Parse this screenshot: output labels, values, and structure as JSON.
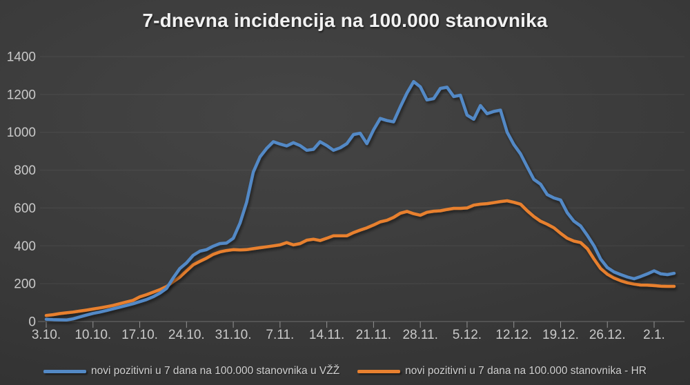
{
  "title": "7-dnevna incidencija na 100.000 stanovnika",
  "colors": {
    "background": "#3a3a3a",
    "title_text": "#f2f2f2",
    "axis_text": "#c9c9c9",
    "gridline": "rgba(255,255,255,0.07)",
    "axis_line": "rgba(255,255,255,0.18)",
    "tick_mark": "#949494",
    "series_vzz": "#5389c6",
    "series_hr": "#e8802f"
  },
  "chart_data": {
    "type": "line",
    "title": "7-dnevna incidencija na 100.000 stanovnika",
    "xlabel": "",
    "ylabel": "",
    "ylim": [
      0,
      1400
    ],
    "y_ticks": [
      0,
      200,
      400,
      600,
      800,
      1000,
      1200,
      1400
    ],
    "grid": "horizontal",
    "legend_position": "bottom",
    "x_tick_labels": [
      "3.10.",
      "10.10.",
      "17.10.",
      "24.10.",
      "31.10.",
      "7.11.",
      "14.11.",
      "21.11.",
      "28.11.",
      "5.12.",
      "12.12.",
      "19.12.",
      "26.12.",
      "2.1."
    ],
    "x_tick_every_days": 7,
    "x": [
      "3.10.",
      "4.10.",
      "5.10.",
      "6.10.",
      "7.10.",
      "8.10.",
      "9.10.",
      "10.10.",
      "11.10.",
      "12.10.",
      "13.10.",
      "14.10.",
      "15.10.",
      "16.10.",
      "17.10.",
      "18.10.",
      "19.10.",
      "20.10.",
      "21.10.",
      "22.10.",
      "23.10.",
      "24.10.",
      "25.10.",
      "26.10.",
      "27.10.",
      "28.10.",
      "29.10.",
      "30.10.",
      "31.10.",
      "1.11.",
      "2.11.",
      "3.11.",
      "4.11.",
      "5.11.",
      "6.11.",
      "7.11.",
      "8.11.",
      "9.11.",
      "10.11.",
      "11.11.",
      "12.11.",
      "13.11.",
      "14.11.",
      "15.11.",
      "16.11.",
      "17.11.",
      "18.11.",
      "19.11.",
      "20.11.",
      "21.11.",
      "22.11.",
      "23.11.",
      "24.11.",
      "25.11.",
      "26.11.",
      "27.11.",
      "28.11.",
      "29.11.",
      "30.11.",
      "1.12.",
      "2.12.",
      "3.12.",
      "4.12.",
      "5.12.",
      "6.12.",
      "7.12.",
      "8.12.",
      "9.12.",
      "10.12.",
      "11.12.",
      "12.12.",
      "13.12.",
      "14.12.",
      "15.12.",
      "16.12.",
      "17.12.",
      "18.12.",
      "19.12.",
      "20.12.",
      "21.12.",
      "22.12.",
      "23.12.",
      "24.12.",
      "25.12.",
      "26.12.",
      "27.12.",
      "28.12.",
      "29.12.",
      "30.12.",
      "31.12.",
      "1.1.",
      "2.1.",
      "3.1.",
      "4.1.",
      "5.1."
    ],
    "series": [
      {
        "name": "novi pozitivni u 7 dana na 100.000 stanovnika u VŽŽ",
        "color": "#5389c6",
        "values": [
          12,
          10,
          9,
          8,
          14,
          24,
          34,
          43,
          50,
          58,
          67,
          76,
          85,
          94,
          105,
          116,
          131,
          150,
          175,
          230,
          280,
          310,
          350,
          372,
          380,
          398,
          412,
          415,
          440,
          520,
          630,
          790,
          870,
          915,
          950,
          938,
          928,
          945,
          930,
          905,
          910,
          950,
          930,
          905,
          918,
          940,
          988,
          995,
          940,
          1013,
          1073,
          1062,
          1055,
          1134,
          1207,
          1268,
          1240,
          1171,
          1178,
          1232,
          1238,
          1189,
          1196,
          1091,
          1069,
          1141,
          1098,
          1110,
          1117,
          1000,
          935,
          886,
          817,
          751,
          726,
          671,
          653,
          642,
          575,
          530,
          505,
          455,
          400,
          330,
          285,
          262,
          248,
          235,
          226,
          238,
          252,
          268,
          252,
          248,
          255
        ]
      },
      {
        "name": "novi pozitivni u 7 dana na 100.000 stanovnika - HR",
        "color": "#e8802f",
        "values": [
          32,
          36,
          42,
          46,
          50,
          55,
          60,
          66,
          72,
          78,
          85,
          94,
          103,
          112,
          130,
          142,
          155,
          168,
          185,
          210,
          235,
          268,
          300,
          318,
          335,
          355,
          368,
          375,
          380,
          378,
          380,
          385,
          390,
          395,
          400,
          405,
          417,
          405,
          412,
          430,
          435,
          428,
          440,
          453,
          453,
          453,
          470,
          483,
          495,
          510,
          527,
          535,
          550,
          572,
          582,
          570,
          562,
          577,
          583,
          585,
          592,
          598,
          598,
          600,
          615,
          620,
          623,
          628,
          634,
          638,
          630,
          620,
          585,
          555,
          530,
          514,
          495,
          466,
          440,
          425,
          417,
          385,
          330,
          280,
          250,
          230,
          216,
          205,
          198,
          193,
          192,
          190,
          187,
          186,
          186
        ]
      }
    ]
  }
}
